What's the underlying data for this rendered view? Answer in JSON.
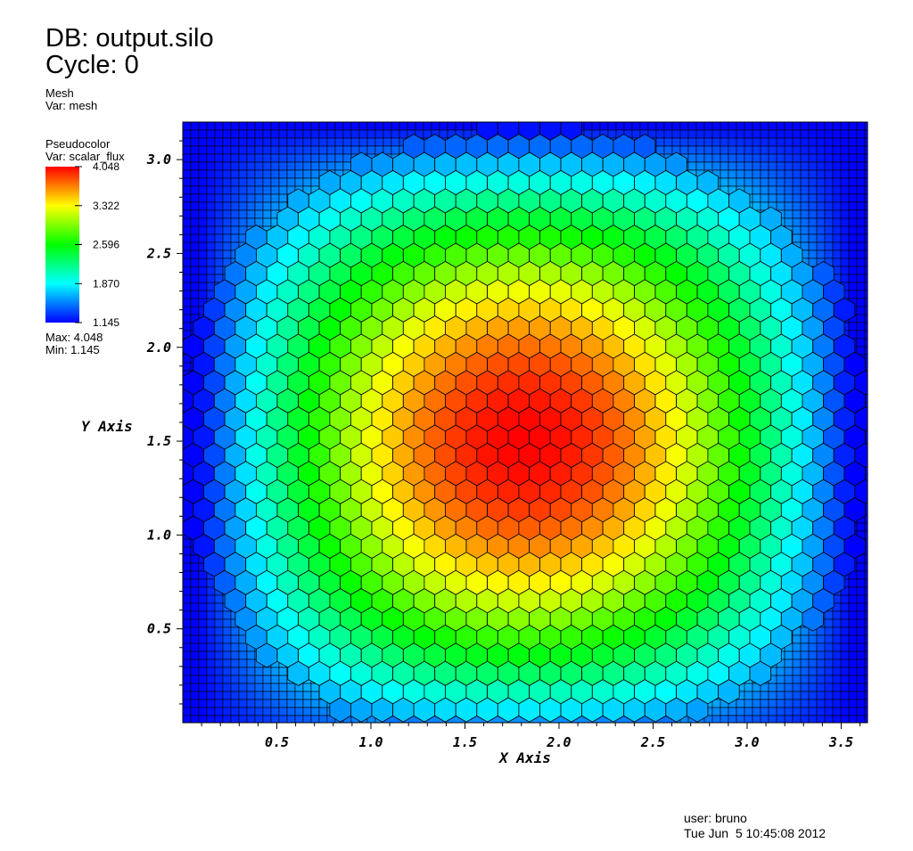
{
  "header": {
    "db_label": "DB: output.silo",
    "cycle_label": "Cycle: 0"
  },
  "mesh_plot": {
    "plot_name": "Mesh",
    "var_label": "Var: mesh"
  },
  "pseudocolor": {
    "plot_name": "Pseudocolor",
    "var_label": "Var: scalar_flux",
    "ticks": [
      "4.048",
      "3.322",
      "2.596",
      "1.870",
      "1.145"
    ],
    "max_label": "Max:  4.048",
    "min_label": "Min:  1.145",
    "max": 4.048,
    "min": 1.145
  },
  "footer": {
    "user_label": "user: bruno",
    "date_label": "Tue Jun  5 10:45:08 2012"
  },
  "chart_data": {
    "type": "heatmap",
    "title": "",
    "xlabel": "X Axis",
    "ylabel": "Y Axis",
    "xlim": [
      0,
      3.64
    ],
    "ylim": [
      0,
      3.2
    ],
    "x_ticks": [
      "0.5",
      "1.0",
      "1.5",
      "2.0",
      "2.5",
      "3.0",
      "3.5"
    ],
    "x_tick_values": [
      0.5,
      1.0,
      1.5,
      2.0,
      2.5,
      3.0,
      3.5
    ],
    "y_ticks": [
      "0.5",
      "1.0",
      "1.5",
      "2.0",
      "2.5",
      "3.0"
    ],
    "y_tick_values": [
      0.5,
      1.0,
      1.5,
      2.0,
      2.5,
      3.0
    ],
    "field": {
      "center": [
        1.82,
        1.5
      ],
      "value_max": 4.048,
      "value_min": 1.145,
      "shape": "cosine"
    },
    "colormap": [
      "#0000ff",
      "#00ffff",
      "#00ff00",
      "#ffff00",
      "#ff0000"
    ]
  }
}
